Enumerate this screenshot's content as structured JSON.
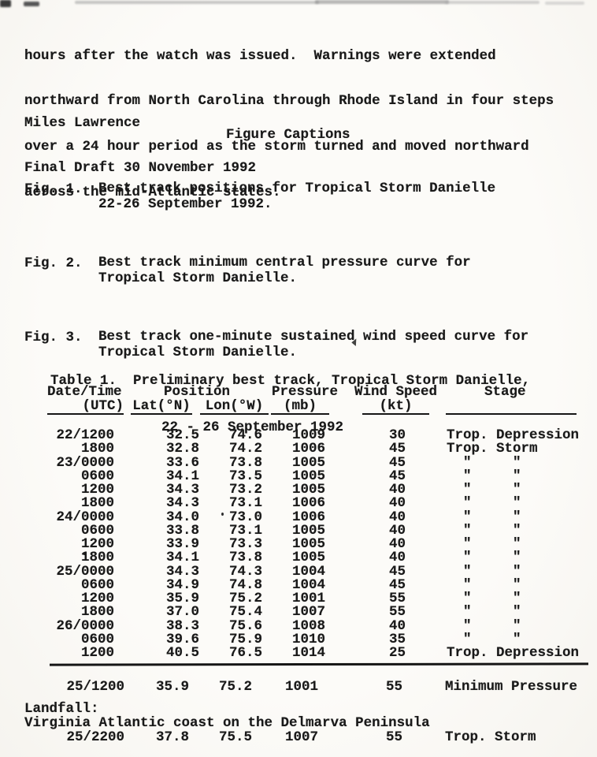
{
  "colors": {
    "ink": "#191919",
    "paper": "#fbfaf7"
  },
  "paragraph_lines": [
    "hours after the watch was issued.  Warnings were extended",
    "northward from North Carolina through Rhode Island in four steps",
    "over a 24 hour period as the storm turned and moved northward",
    "across the mid-Atlantic states."
  ],
  "byline_lines": [
    "Miles Lawrence",
    "Final Draft 30 November 1992"
  ],
  "figure_captions_heading": "Figure Captions",
  "figures": [
    {
      "label": "Fig. 1.",
      "line1": "Best track positions for Tropical Storm Danielle",
      "line2": "22-26 September 1992."
    },
    {
      "label": "Fig. 2.",
      "line1": "Best track minimum central pressure curve for",
      "line2": "Tropical Storm Danielle."
    },
    {
      "label": "Fig. 3.",
      "line1": "Best track one-minute sustained wind speed curve for",
      "line2": "Tropical Storm Danielle."
    }
  ],
  "table": {
    "caption_line1": "Table 1.  Preliminary best track, Tropical Storm Danielle,",
    "caption_line2": "22 - 26 September 1992",
    "headers": {
      "date_time": "Date/Time",
      "utc": "(UTC)",
      "position": "Position",
      "lat": "Lat(°N)",
      "lon": "Lon(°W)",
      "pressure": "Pressure",
      "mb": "(mb)",
      "wind_speed": "Wind Speed",
      "kt": "(kt)",
      "stage": "Stage"
    },
    "rows": [
      {
        "date": "22/1200",
        "lat": "32.5",
        "lon": "74.6",
        "pressure": "1009",
        "wind": "30",
        "stage": "Trop. Depression"
      },
      {
        "date": "1800",
        "lat": "32.8",
        "lon": "74.2",
        "pressure": "1006",
        "wind": "45",
        "stage": "Trop. Storm"
      },
      {
        "date": "23/0000",
        "lat": "33.6",
        "lon": "73.8",
        "pressure": "1005",
        "wind": "45",
        "stage": "  \"     \""
      },
      {
        "date": "0600",
        "lat": "34.1",
        "lon": "73.5",
        "pressure": "1005",
        "wind": "45",
        "stage": "  \"     \""
      },
      {
        "date": "1200",
        "lat": "34.3",
        "lon": "73.2",
        "pressure": "1005",
        "wind": "40",
        "stage": "  \"     \""
      },
      {
        "date": "1800",
        "lat": "34.3",
        "lon": "73.1",
        "pressure": "1006",
        "wind": "40",
        "stage": "  \"     \""
      },
      {
        "date": "24/0000",
        "lat": "34.0",
        "lon": "73.0",
        "pressure": "1006",
        "wind": "40",
        "stage": "  \"     \""
      },
      {
        "date": "0600",
        "lat": "33.8",
        "lon": "73.1",
        "pressure": "1005",
        "wind": "40",
        "stage": "  \"     \""
      },
      {
        "date": "1200",
        "lat": "33.9",
        "lon": "73.3",
        "pressure": "1005",
        "wind": "40",
        "stage": "  \"     \""
      },
      {
        "date": "1800",
        "lat": "34.1",
        "lon": "73.8",
        "pressure": "1005",
        "wind": "40",
        "stage": "  \"     \""
      },
      {
        "date": "25/0000",
        "lat": "34.3",
        "lon": "74.3",
        "pressure": "1004",
        "wind": "45",
        "stage": "  \"     \""
      },
      {
        "date": "0600",
        "lat": "34.9",
        "lon": "74.8",
        "pressure": "1004",
        "wind": "45",
        "stage": "  \"     \""
      },
      {
        "date": "1200",
        "lat": "35.9",
        "lon": "75.2",
        "pressure": "1001",
        "wind": "55",
        "stage": "  \"     \""
      },
      {
        "date": "1800",
        "lat": "37.0",
        "lon": "75.4",
        "pressure": "1007",
        "wind": "55",
        "stage": "  \"     \""
      },
      {
        "date": "26/0000",
        "lat": "38.3",
        "lon": "75.6",
        "pressure": "1008",
        "wind": "40",
        "stage": "  \"     \""
      },
      {
        "date": "0600",
        "lat": "39.6",
        "lon": "75.9",
        "pressure": "1010",
        "wind": "35",
        "stage": "  \"     \""
      },
      {
        "date": "1200",
        "lat": "40.5",
        "lon": "76.5",
        "pressure": "1014",
        "wind": "25",
        "stage": "Trop. Depression"
      }
    ],
    "summary_row": {
      "date": "25/1200",
      "lat": "35.9",
      "lon": "75.2",
      "pressure": "1001",
      "wind": "55",
      "stage": "Minimum Pressure"
    },
    "landfall_label": "Landfall:",
    "landfall_description": "Virginia Atlantic coast on the Delmarva Peninsula",
    "landfall_row": {
      "date": "25/2200",
      "lat": "37.8",
      "lon": "75.5",
      "pressure": "1007",
      "wind": "55",
      "stage": "Trop. Storm"
    }
  }
}
